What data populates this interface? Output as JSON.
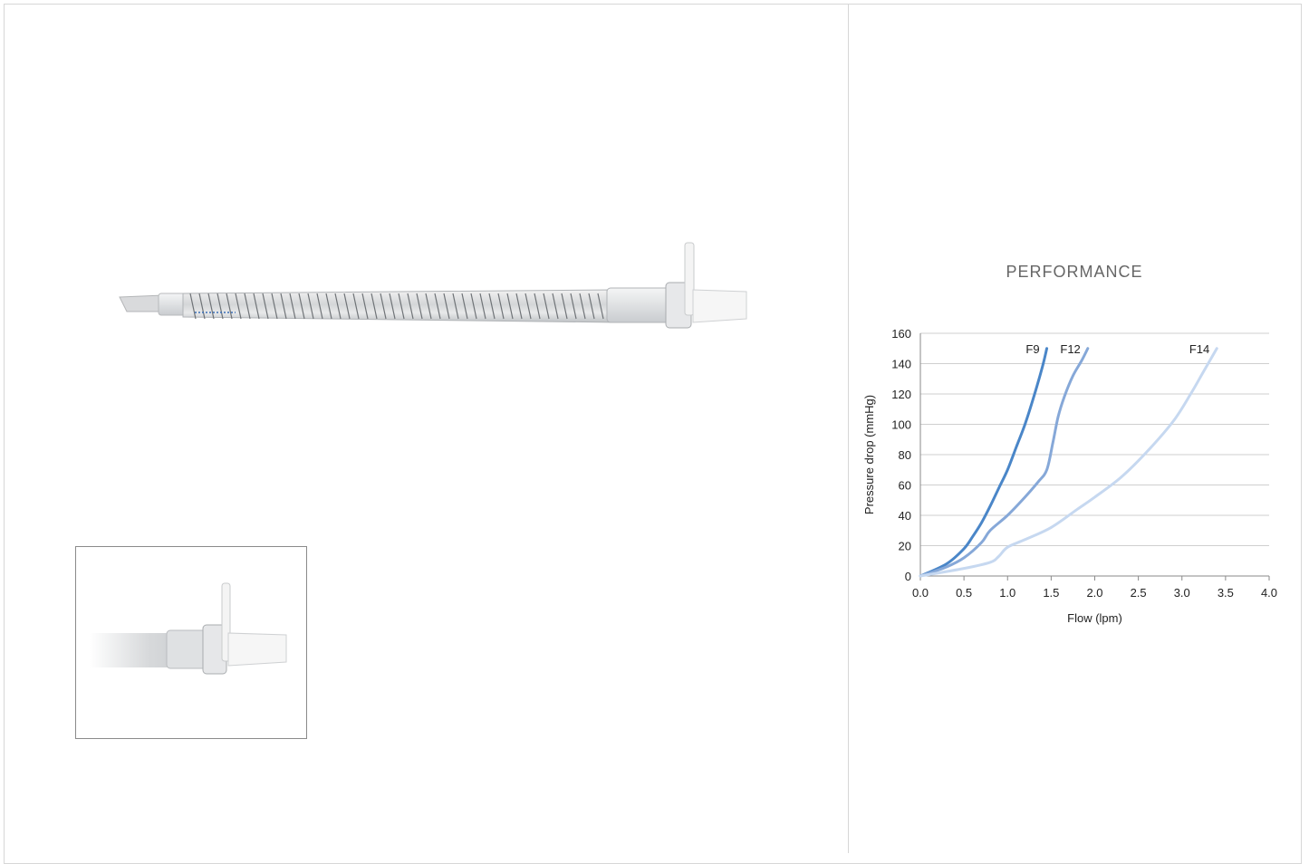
{
  "section_title": "PERFORMANCE",
  "chart_data": {
    "type": "line",
    "xlabel": "Flow (lpm)",
    "ylabel": "Pressure drop (mmHg)",
    "xlim": [
      0,
      4
    ],
    "ylim": [
      0,
      160
    ],
    "x_ticks": [
      "0.0",
      "0.5",
      "1.0",
      "1.5",
      "2.0",
      "2.5",
      "3.0",
      "3.5",
      "4.0"
    ],
    "y_ticks": [
      "0",
      "20",
      "40",
      "60",
      "80",
      "100",
      "120",
      "140",
      "160"
    ],
    "grid": "horizontal",
    "series": [
      {
        "name": "F9",
        "color": "#4a86c8",
        "points": [
          [
            0,
            0
          ],
          [
            0.3,
            8
          ],
          [
            0.5,
            18
          ],
          [
            0.6,
            26
          ],
          [
            0.7,
            35
          ],
          [
            0.8,
            46
          ],
          [
            0.9,
            58
          ],
          [
            1.0,
            70
          ],
          [
            1.1,
            85
          ],
          [
            1.2,
            100
          ],
          [
            1.3,
            118
          ],
          [
            1.4,
            138
          ],
          [
            1.45,
            150
          ]
        ]
      },
      {
        "name": "F12",
        "color": "#86a8d8",
        "points": [
          [
            0,
            0
          ],
          [
            0.3,
            6
          ],
          [
            0.5,
            12
          ],
          [
            0.7,
            22
          ],
          [
            0.8,
            30
          ],
          [
            1.0,
            40
          ],
          [
            1.2,
            52
          ],
          [
            1.35,
            62
          ],
          [
            1.45,
            70
          ],
          [
            1.52,
            88
          ],
          [
            1.58,
            105
          ],
          [
            1.65,
            118
          ],
          [
            1.75,
            132
          ],
          [
            1.85,
            142
          ],
          [
            1.92,
            150
          ]
        ]
      },
      {
        "name": "F14",
        "color": "#c6d8f0",
        "points": [
          [
            0,
            0
          ],
          [
            0.5,
            5
          ],
          [
            0.8,
            9
          ],
          [
            0.9,
            13
          ],
          [
            1.0,
            19
          ],
          [
            1.2,
            24
          ],
          [
            1.5,
            32
          ],
          [
            1.8,
            44
          ],
          [
            2.0,
            52
          ],
          [
            2.3,
            65
          ],
          [
            2.6,
            82
          ],
          [
            2.9,
            102
          ],
          [
            3.1,
            120
          ],
          [
            3.25,
            135
          ],
          [
            3.4,
            150
          ]
        ]
      }
    ]
  }
}
